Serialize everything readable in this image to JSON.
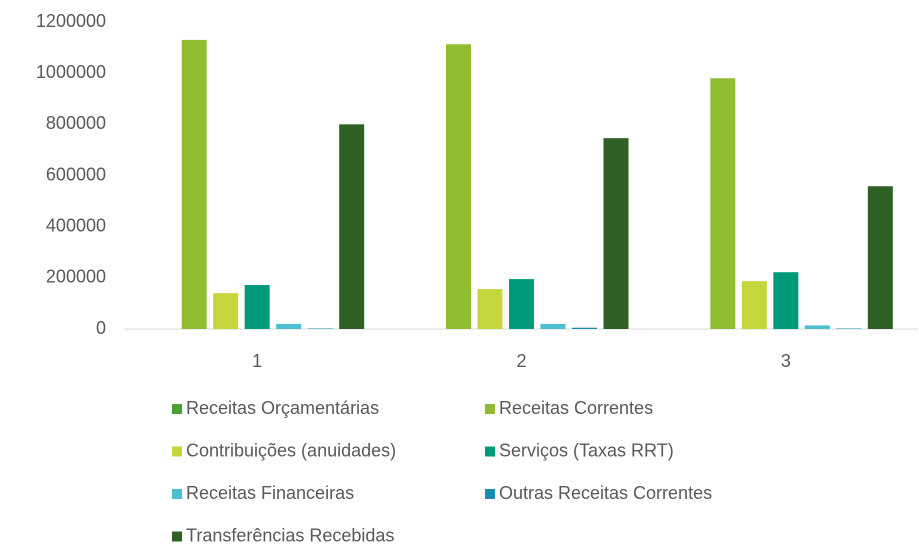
{
  "chart_data": {
    "type": "bar",
    "categories": [
      "1",
      "2",
      "3"
    ],
    "series": [
      {
        "name": "Receitas Orçamentárias",
        "color": "#4e9f32",
        "values": [
          0,
          0,
          0
        ]
      },
      {
        "name": "Receitas Correntes",
        "color": "#8fbc31",
        "values": [
          1130000,
          1113000,
          980000
        ]
      },
      {
        "name": "Contribuições (anuidades)",
        "color": "#c6d53b",
        "values": [
          140000,
          156000,
          187000
        ]
      },
      {
        "name": "Serviços (Taxas RRT)",
        "color": "#00997a",
        "values": [
          172000,
          195000,
          222000
        ]
      },
      {
        "name": "Receitas Financeiras",
        "color": "#4dc0cf",
        "values": [
          20000,
          20000,
          14000
        ]
      },
      {
        "name": "Outras Receitas Correntes",
        "color": "#1c8bb3",
        "values": [
          2000,
          5000,
          2000
        ]
      },
      {
        "name": "Transferências Recebidas",
        "color": "#2f6125",
        "values": [
          800000,
          746000,
          558000
        ]
      }
    ],
    "ylim": [
      0,
      1200000
    ],
    "yticks": [
      0,
      200000,
      400000,
      600000,
      800000,
      1000000,
      1200000
    ],
    "grid": false,
    "legend": "bottom"
  }
}
